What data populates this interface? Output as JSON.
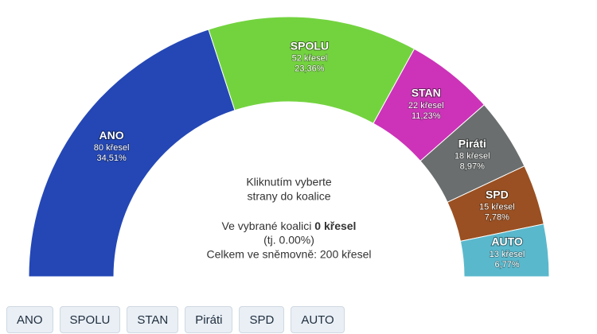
{
  "chart_data": {
    "type": "parliament",
    "series": [
      {
        "name": "ANO",
        "color": "#2447b5",
        "values": [
          80
        ],
        "value_labels": [
          "80 křesel"
        ],
        "share_label": "34,51%"
      },
      {
        "name": "SPOLU",
        "color": "#73d33f",
        "values": [
          52
        ],
        "value_labels": [
          "52 křesel"
        ],
        "share_label": "23,36%"
      },
      {
        "name": "STAN",
        "color": "#cc33b8",
        "values": [
          22
        ],
        "value_labels": [
          "22 křesel"
        ],
        "share_label": "11,23%"
      },
      {
        "name": "Piráti",
        "color": "#6a6e6e",
        "values": [
          18
        ],
        "value_labels": [
          "18 křesel"
        ],
        "share_label": "8,97%"
      },
      {
        "name": "SPD",
        "color": "#9a5022",
        "values": [
          15
        ],
        "value_labels": [
          "15 křesel"
        ],
        "share_label": "7,78%"
      },
      {
        "name": "AUTO",
        "color": "#5ab8cc",
        "values": [
          13
        ],
        "value_labels": [
          "13 křesel"
        ],
        "share_label": "6,77%"
      }
    ],
    "center": {
      "hint": [
        "Kliknutím vyberte",
        "strany do koalice"
      ],
      "coalition_prefix": "Ve vybrané koalici",
      "coalition_seats": "0 křesel",
      "coalition_share": "(tj. 0.00%)",
      "total": "Celkem ve sněmovně: 200 křesel"
    }
  }
}
